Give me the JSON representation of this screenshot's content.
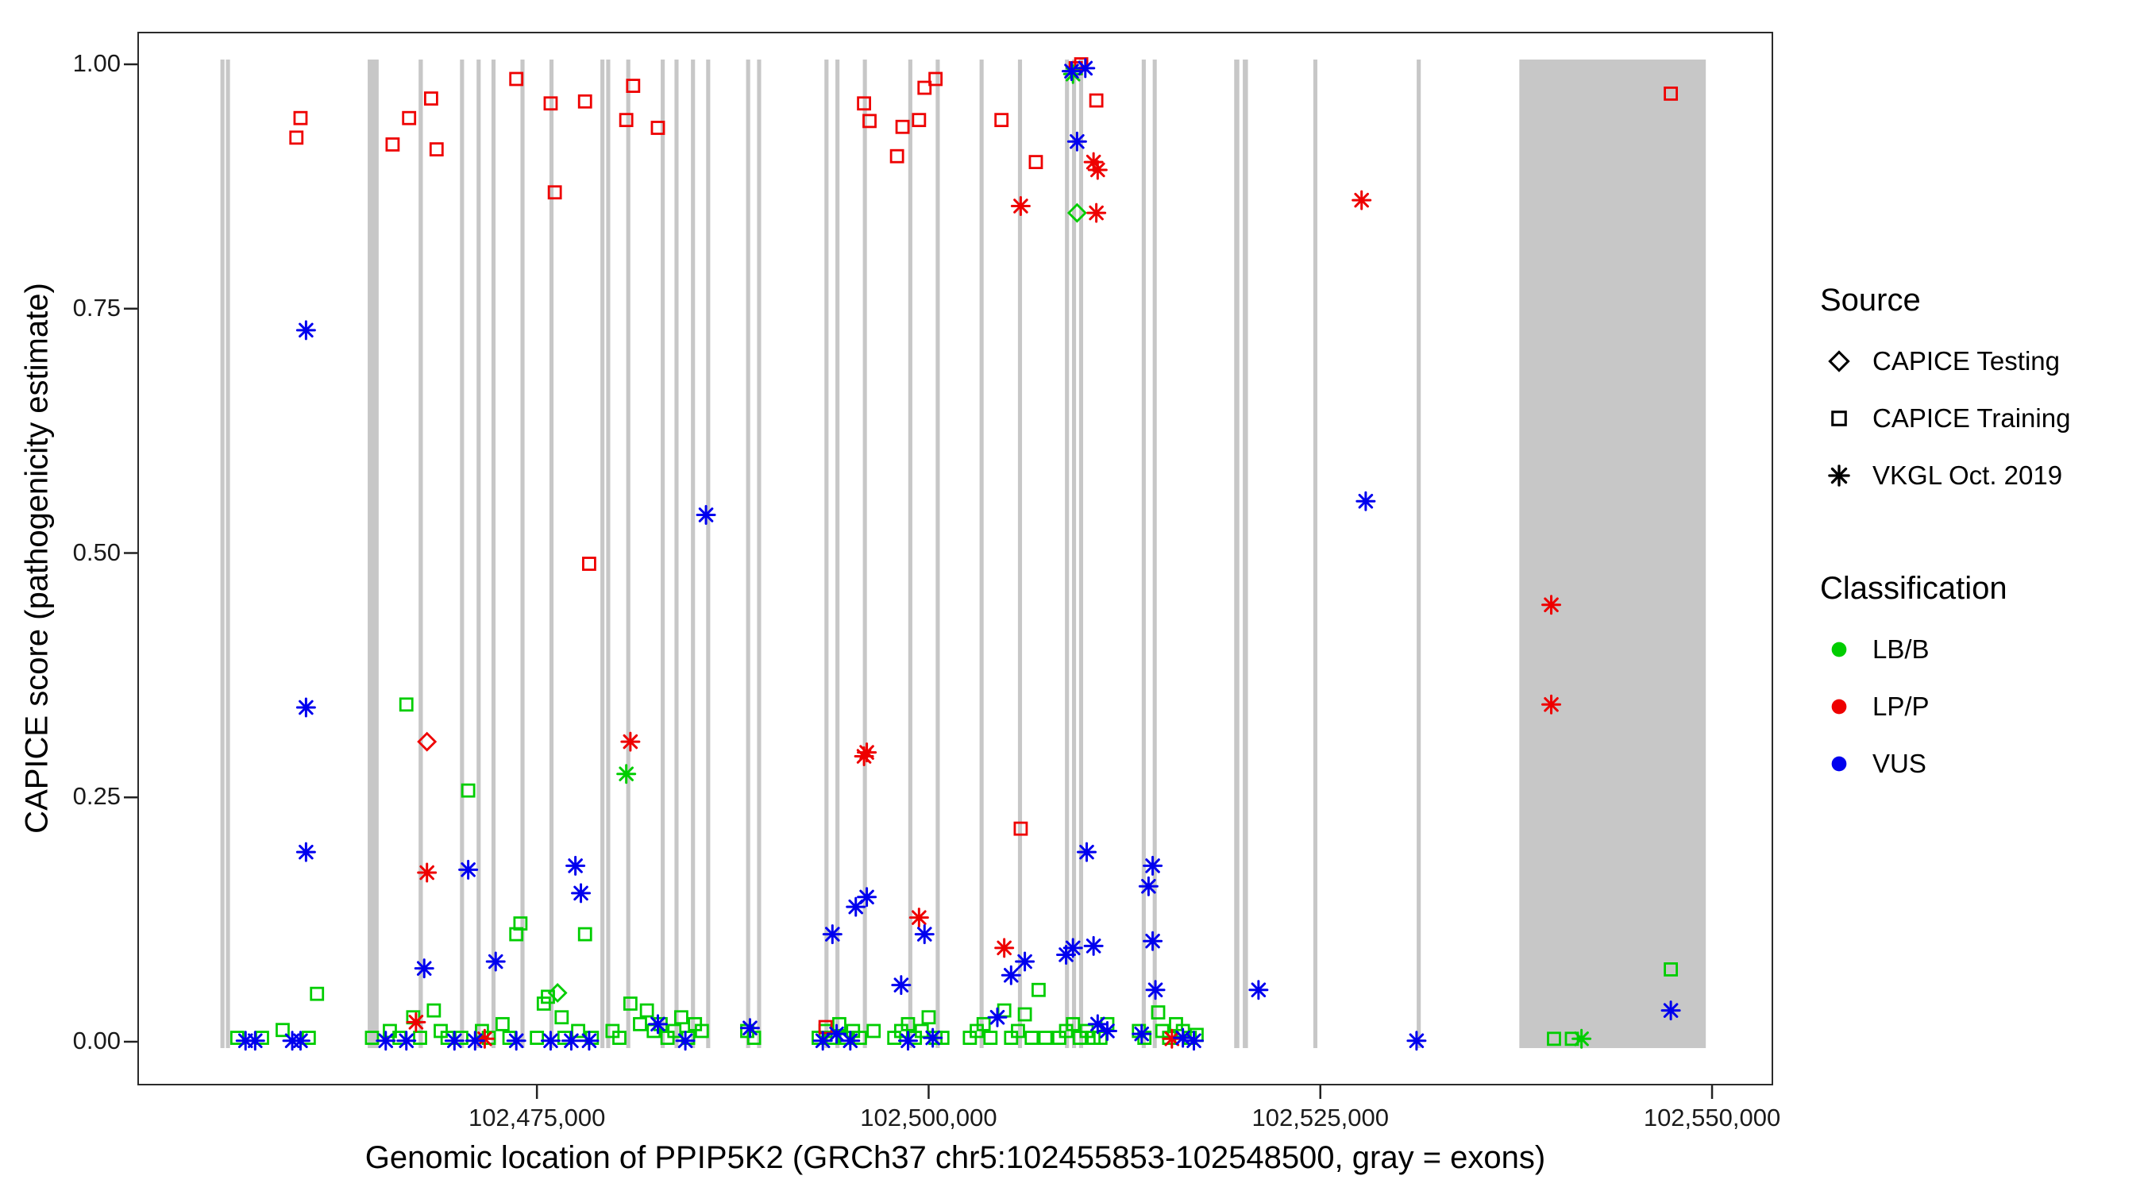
{
  "legend": {
    "source": {
      "title": "Source",
      "items": [
        {
          "label": "CAPICE Testing",
          "marker": "diamond",
          "color": "#000000"
        },
        {
          "label": "CAPICE Training",
          "marker": "square",
          "color": "#000000"
        },
        {
          "label": "VKGL Oct. 2019",
          "marker": "asterisk",
          "color": "#000000"
        }
      ]
    },
    "classification": {
      "title": "Classification",
      "items": [
        {
          "label": "LB/B",
          "marker": "circle",
          "color": "#00CD00"
        },
        {
          "label": "LP/P",
          "marker": "circle",
          "color": "#EE0000"
        },
        {
          "label": "VUS",
          "marker": "circle",
          "color": "#0000EE"
        }
      ]
    }
  },
  "chart_data": {
    "type": "scatter",
    "title": "",
    "xlabel": "Genomic location of PPIP5K2 (GRCh37 chr5:102455853-102548500, gray = exons)",
    "ylabel": "CAPICE score (pathogenicity estimate)",
    "xlim": [
      102449500,
      102553900
    ],
    "ylim": [
      0,
      1
    ],
    "grid": false,
    "legend_position": "right",
    "x_ticks": [
      {
        "value": 102475000,
        "label": "102,475,000"
      },
      {
        "value": 102500000,
        "label": "102,500,000"
      },
      {
        "value": 102525000,
        "label": "102,525,000"
      },
      {
        "value": 102550000,
        "label": "102,550,000"
      }
    ],
    "y_ticks": [
      {
        "value": 0.0,
        "label": "0.00"
      },
      {
        "value": 0.25,
        "label": "0.25"
      },
      {
        "value": 0.5,
        "label": "0.50"
      },
      {
        "value": 0.75,
        "label": "0.75"
      },
      {
        "value": 1.0,
        "label": "1.00"
      }
    ],
    "exon_color": "#C7C7C7",
    "exons": [
      [
        102454800,
        102455060
      ],
      [
        102455150,
        102455410
      ],
      [
        102464200,
        102464900
      ],
      [
        102467450,
        102467720
      ],
      [
        102470090,
        102470350
      ],
      [
        102471150,
        102471410
      ],
      [
        102472100,
        102472360
      ],
      [
        102473950,
        102474210
      ],
      [
        102475800,
        102476060
      ],
      [
        102479050,
        102479310
      ],
      [
        102479420,
        102479680
      ],
      [
        102480700,
        102480960
      ],
      [
        102482900,
        102483160
      ],
      [
        102483780,
        102484040
      ],
      [
        102484830,
        102485090
      ],
      [
        102485800,
        102486060
      ],
      [
        102488350,
        102488610
      ],
      [
        102489050,
        102489310
      ],
      [
        102493350,
        102493610
      ],
      [
        102494050,
        102494310
      ],
      [
        102495800,
        102496060
      ],
      [
        102498700,
        102498960
      ],
      [
        102500450,
        102500710
      ],
      [
        102503250,
        102503510
      ],
      [
        102505700,
        102505960
      ],
      [
        102508700,
        102508960
      ],
      [
        102509150,
        102509410
      ],
      [
        102509600,
        102509860
      ],
      [
        102513600,
        102513860
      ],
      [
        102514300,
        102514560
      ],
      [
        102519500,
        102519830
      ],
      [
        102520050,
        102520380
      ],
      [
        102524550,
        102524810
      ],
      [
        102531150,
        102531410
      ],
      [
        102537700,
        102549600
      ]
    ],
    "series": [
      {
        "name": "CAPICE Training / LB/B",
        "source": "CAPICE Training",
        "classification": "LB/B",
        "marker": "square",
        "color": "#00CD00",
        "points": [
          [
            102455877,
            0.004
          ],
          [
            102457456,
            0.004
          ],
          [
            102458772,
            0.012
          ],
          [
            102460439,
            0.004
          ],
          [
            102460965,
            0.049
          ],
          [
            102464474,
            0.004
          ],
          [
            102465614,
            0.011
          ],
          [
            102466228,
            0.004
          ],
          [
            102466667,
            0.345
          ],
          [
            102467105,
            0.025
          ],
          [
            102467544,
            0.004
          ],
          [
            102468421,
            0.032
          ],
          [
            102468860,
            0.011
          ],
          [
            102469298,
            0.004
          ],
          [
            102470175,
            0.004
          ],
          [
            102470614,
            0.257
          ],
          [
            102471491,
            0.011
          ],
          [
            102471930,
            0.004
          ],
          [
            102472807,
            0.018
          ],
          [
            102473246,
            0.004
          ],
          [
            102473684,
            0.11
          ],
          [
            102473947,
            0.121
          ],
          [
            102475000,
            0.004
          ],
          [
            102475439,
            0.039
          ],
          [
            102475702,
            0.046
          ],
          [
            102476579,
            0.025
          ],
          [
            102476754,
            0.004
          ],
          [
            102477632,
            0.011
          ],
          [
            102478070,
            0.11
          ],
          [
            102478509,
            0.004
          ],
          [
            102479825,
            0.011
          ],
          [
            102480263,
            0.004
          ],
          [
            102480965,
            0.039
          ],
          [
            102481579,
            0.018
          ],
          [
            102482018,
            0.032
          ],
          [
            102482456,
            0.011
          ],
          [
            102482895,
            0.018
          ],
          [
            102483333,
            0.004
          ],
          [
            102483772,
            0.011
          ],
          [
            102484211,
            0.025
          ],
          [
            102484649,
            0.004
          ],
          [
            102485088,
            0.018
          ],
          [
            102485526,
            0.011
          ],
          [
            102488421,
            0.011
          ],
          [
            102488860,
            0.004
          ],
          [
            102492982,
            0.004
          ],
          [
            102493421,
            0.011
          ],
          [
            102493860,
            0.004
          ],
          [
            102494298,
            0.018
          ],
          [
            102494737,
            0.004
          ],
          [
            102495175,
            0.011
          ],
          [
            102495614,
            0.004
          ],
          [
            102496491,
            0.011
          ],
          [
            102497807,
            0.004
          ],
          [
            102498246,
            0.011
          ],
          [
            102498684,
            0.018
          ],
          [
            102499123,
            0.004
          ],
          [
            102499561,
            0.011
          ],
          [
            102500000,
            0.025
          ],
          [
            102500439,
            0.004
          ],
          [
            102500877,
            0.004
          ],
          [
            102502632,
            0.004
          ],
          [
            102503070,
            0.011
          ],
          [
            102503509,
            0.018
          ],
          [
            102503947,
            0.004
          ],
          [
            102504825,
            0.032
          ],
          [
            102505263,
            0.004
          ],
          [
            102505702,
            0.011
          ],
          [
            102506140,
            0.028
          ],
          [
            102506579,
            0.004
          ],
          [
            102507018,
            0.053
          ],
          [
            102507456,
            0.004
          ],
          [
            102508333,
            0.004
          ],
          [
            102508772,
            0.011
          ],
          [
            102509211,
            0.018
          ],
          [
            102509649,
            0.004
          ],
          [
            102510088,
            0.011
          ],
          [
            102510526,
            0.004
          ],
          [
            102510965,
            0.004
          ],
          [
            102511404,
            0.018
          ],
          [
            102513421,
            0.011
          ],
          [
            102513772,
            0.004
          ],
          [
            102514649,
            0.03
          ],
          [
            102514912,
            0.011
          ],
          [
            102515351,
            0.004
          ],
          [
            102515789,
            0.018
          ],
          [
            102516228,
            0.011
          ],
          [
            102516667,
            0.004
          ],
          [
            102517105,
            0.007
          ],
          [
            102539912,
            0.003
          ],
          [
            102541053,
            0.003
          ],
          [
            102547368,
            0.074
          ]
        ]
      },
      {
        "name": "CAPICE Training / LP/P",
        "source": "CAPICE Training",
        "classification": "LP/P",
        "marker": "square",
        "color": "#EE0000",
        "points": [
          [
            102459649,
            0.925
          ],
          [
            102459912,
            0.945
          ],
          [
            102465789,
            0.918
          ],
          [
            102466842,
            0.945
          ],
          [
            102468246,
            0.965
          ],
          [
            102468596,
            0.913
          ],
          [
            102473684,
            0.985
          ],
          [
            102475877,
            0.96
          ],
          [
            102476140,
            0.869
          ],
          [
            102478070,
            0.962
          ],
          [
            102478333,
            0.489
          ],
          [
            102480702,
            0.943
          ],
          [
            102481140,
            0.978
          ],
          [
            102482719,
            0.935
          ],
          [
            102493421,
            0.015
          ],
          [
            102495877,
            0.96
          ],
          [
            102496228,
            0.942
          ],
          [
            102497982,
            0.906
          ],
          [
            102498333,
            0.936
          ],
          [
            102499386,
            0.943
          ],
          [
            102499737,
            0.976
          ],
          [
            102500439,
            0.985
          ],
          [
            102504649,
            0.943
          ],
          [
            102505877,
            0.218
          ],
          [
            102506842,
            0.9
          ],
          [
            102509386,
            0.996
          ],
          [
            102509737,
            1.0
          ],
          [
            102510702,
            0.963
          ],
          [
            102547368,
            0.97
          ]
        ]
      },
      {
        "name": "CAPICE Testing / LB/B",
        "source": "CAPICE Testing",
        "classification": "LB/B",
        "marker": "diamond",
        "color": "#00CD00",
        "points": [
          [
            102476316,
            0.05
          ],
          [
            102509474,
            0.848
          ]
        ]
      },
      {
        "name": "CAPICE Testing / LP/P",
        "source": "CAPICE Testing",
        "classification": "LP/P",
        "marker": "diamond",
        "color": "#EE0000",
        "points": [
          [
            102467982,
            0.307
          ]
        ]
      },
      {
        "name": "VKGL Oct. 2019 / LB/B",
        "source": "VKGL Oct. 2019",
        "classification": "LB/B",
        "marker": "asterisk",
        "color": "#00CD00",
        "points": [
          [
            102480702,
            0.274
          ],
          [
            102509211,
            0.99
          ],
          [
            102541667,
            0.003
          ]
        ]
      },
      {
        "name": "VKGL Oct. 2019 / LP/P",
        "source": "VKGL Oct. 2019",
        "classification": "LP/P",
        "marker": "asterisk",
        "color": "#EE0000",
        "points": [
          [
            102467281,
            0.02
          ],
          [
            102467982,
            0.173
          ],
          [
            102471667,
            0.003
          ],
          [
            102480965,
            0.307
          ],
          [
            102495877,
            0.292
          ],
          [
            102496053,
            0.296
          ],
          [
            102499386,
            0.127
          ],
          [
            102504825,
            0.096
          ],
          [
            102505877,
            0.855
          ],
          [
            102510526,
            0.9
          ],
          [
            102510789,
            0.892
          ],
          [
            102510702,
            0.848
          ],
          [
            102515526,
            0.003
          ],
          [
            102527632,
            0.861
          ],
          [
            102539737,
            0.447
          ],
          [
            102539737,
            0.345
          ]
        ]
      },
      {
        "name": "VKGL Oct. 2019 / VUS",
        "source": "VKGL Oct. 2019",
        "classification": "VUS",
        "marker": "asterisk",
        "color": "#0000EE",
        "points": [
          [
            102456404,
            0.001
          ],
          [
            102457017,
            0.001
          ],
          [
            102459386,
            0.001
          ],
          [
            102459912,
            0.001
          ],
          [
            102460263,
            0.728
          ],
          [
            102460263,
            0.342
          ],
          [
            102460263,
            0.194
          ],
          [
            102465351,
            0.001
          ],
          [
            102466667,
            0.001
          ],
          [
            102467807,
            0.075
          ],
          [
            102469737,
            0.001
          ],
          [
            102470614,
            0.176
          ],
          [
            102471053,
            0.001
          ],
          [
            102472368,
            0.082
          ],
          [
            102473684,
            0.001
          ],
          [
            102475877,
            0.001
          ],
          [
            102477193,
            0.001
          ],
          [
            102477456,
            0.18
          ],
          [
            102477807,
            0.152
          ],
          [
            102478333,
            0.001
          ],
          [
            102482719,
            0.018
          ],
          [
            102484474,
            0.001
          ],
          [
            102485790,
            0.539
          ],
          [
            102488596,
            0.014
          ],
          [
            102493246,
            0.001
          ],
          [
            102493860,
            0.11
          ],
          [
            102494123,
            0.008
          ],
          [
            102495000,
            0.001
          ],
          [
            102495351,
            0.138
          ],
          [
            102496053,
            0.148
          ],
          [
            102498246,
            0.058
          ],
          [
            102498684,
            0.001
          ],
          [
            102499737,
            0.11
          ],
          [
            102500263,
            0.004
          ],
          [
            102504386,
            0.025
          ],
          [
            102505263,
            0.068
          ],
          [
            102506140,
            0.082
          ],
          [
            102508772,
            0.089
          ],
          [
            102509123,
            0.993
          ],
          [
            102509211,
            0.096
          ],
          [
            102509474,
            0.921
          ],
          [
            102510000,
            0.996
          ],
          [
            102510088,
            0.194
          ],
          [
            102510526,
            0.098
          ],
          [
            102510789,
            0.018
          ],
          [
            102511404,
            0.011
          ],
          [
            102513596,
            0.008
          ],
          [
            102514035,
            0.159
          ],
          [
            102514298,
            0.18
          ],
          [
            102514298,
            0.103
          ],
          [
            102514474,
            0.053
          ],
          [
            102516228,
            0.004
          ],
          [
            102516930,
            0.001
          ],
          [
            102521053,
            0.053
          ],
          [
            102527895,
            0.553
          ],
          [
            102531140,
            0.001
          ],
          [
            102547368,
            0.032
          ]
        ]
      }
    ]
  }
}
